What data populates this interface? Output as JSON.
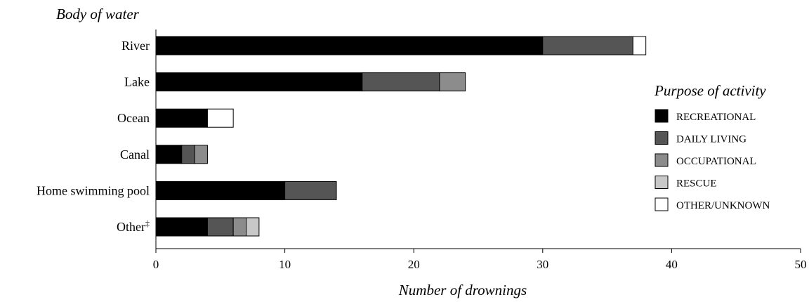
{
  "chart_data": {
    "type": "bar",
    "orientation": "horizontal",
    "stacked": true,
    "ylabel": "Body of water",
    "xlabel": "Number of drownings",
    "xlim": [
      0,
      50
    ],
    "xticks": [
      "0",
      "10",
      "20",
      "30",
      "40",
      "50"
    ],
    "categories": [
      "River",
      "Lake",
      "Ocean",
      "Canal",
      "Home swimming pool",
      "Other"
    ],
    "other_footnote_mark": "‡",
    "legend_title": "Purpose of activity",
    "legend_position": "right",
    "grid": false,
    "series": [
      {
        "name": "RECREATIONAL",
        "color": "#000000",
        "values": [
          30,
          16,
          4,
          2,
          10,
          4
        ]
      },
      {
        "name": "DAILY LIVING",
        "color": "#555555",
        "values": [
          7,
          6,
          0,
          1,
          4,
          2
        ]
      },
      {
        "name": "OCCUPATIONAL",
        "color": "#8c8c8c",
        "values": [
          0,
          2,
          0,
          1,
          0,
          1
        ]
      },
      {
        "name": "RESCUE",
        "color": "#c8c8c8",
        "values": [
          0,
          0,
          0,
          0,
          0,
          1
        ]
      },
      {
        "name": "OTHER/UNKNOWN",
        "color": "#ffffff",
        "values": [
          1,
          0,
          2,
          0,
          0,
          0
        ]
      }
    ]
  }
}
